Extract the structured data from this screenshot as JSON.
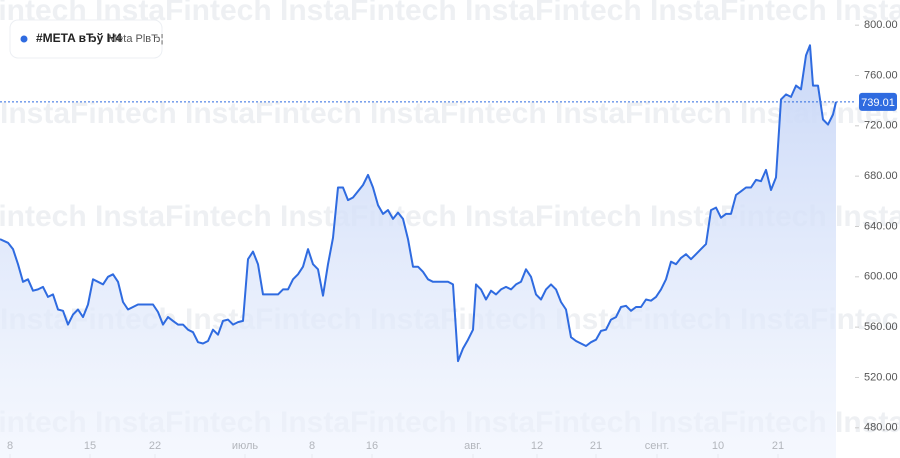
{
  "chart_data": {
    "type": "line",
    "title": "#META вЂў H4",
    "subtitle": "Meta PlвЂ¦",
    "watermark": "InstaFintech",
    "color": "#2f6be0",
    "fill": "#dfe7fb",
    "xlim": [
      0,
      855
    ],
    "ylim": [
      456,
      820
    ],
    "yticks": [
      {
        "value": 480,
        "label": "480.00"
      },
      {
        "value": 520,
        "label": "520.00"
      },
      {
        "value": 560,
        "label": "560.00"
      },
      {
        "value": 600,
        "label": "600.00"
      },
      {
        "value": 640,
        "label": "640.00"
      },
      {
        "value": 680,
        "label": "680.00"
      },
      {
        "value": 720,
        "label": "720.00"
      },
      {
        "value": 760,
        "label": "760.00"
      },
      {
        "value": 800,
        "label": "800.00"
      }
    ],
    "xticks": [
      {
        "value": 10,
        "label": "8"
      },
      {
        "value": 90,
        "label": "15"
      },
      {
        "value": 155,
        "label": "22"
      },
      {
        "value": 245,
        "label": "июль"
      },
      {
        "value": 312,
        "label": "8"
      },
      {
        "value": 372,
        "label": "16"
      },
      {
        "value": 473,
        "label": "авг."
      },
      {
        "value": 537,
        "label": "12"
      },
      {
        "value": 596,
        "label": "21"
      },
      {
        "value": 657,
        "label": "сент."
      },
      {
        "value": 718,
        "label": "10"
      },
      {
        "value": 778,
        "label": "21"
      }
    ],
    "x": [
      0,
      8,
      13,
      18,
      23,
      28,
      33,
      38,
      43,
      48,
      53,
      58,
      63,
      68,
      73,
      78,
      83,
      88,
      93,
      98,
      103,
      108,
      113,
      118,
      123,
      128,
      133,
      138,
      143,
      148,
      153,
      158,
      163,
      168,
      173,
      178,
      183,
      188,
      193,
      198,
      203,
      208,
      213,
      218,
      223,
      228,
      233,
      238,
      243,
      248,
      253,
      258,
      263,
      268,
      273,
      278,
      283,
      288,
      293,
      298,
      303,
      308,
      313,
      318,
      323,
      328,
      333,
      338,
      343,
      348,
      353,
      358,
      363,
      368,
      373,
      378,
      383,
      388,
      393,
      398,
      403,
      408,
      413,
      418,
      423,
      428,
      433,
      438,
      443,
      448,
      453,
      458,
      463,
      468,
      473,
      476,
      481,
      486,
      491,
      496,
      501,
      506,
      511,
      516,
      521,
      526,
      531,
      536,
      541,
      546,
      551,
      556,
      561,
      566,
      571,
      576,
      581,
      586,
      591,
      596,
      601,
      606,
      611,
      616,
      621,
      626,
      631,
      636,
      641,
      646,
      651,
      656,
      661,
      666,
      671,
      676,
      681,
      686,
      691,
      696,
      701,
      706,
      711,
      716,
      721,
      726,
      731,
      736,
      741,
      746,
      751,
      756,
      761,
      766,
      771,
      776,
      781,
      786,
      791,
      796,
      801,
      806,
      810,
      813,
      818,
      823,
      828,
      833,
      836
    ],
    "values": [
      630,
      627,
      622,
      610,
      596,
      598,
      589,
      590,
      592,
      584,
      586,
      574,
      573,
      562,
      570,
      574,
      568,
      578,
      598,
      596,
      594,
      600,
      602,
      596,
      580,
      574,
      576,
      578,
      578,
      578,
      578,
      572,
      562,
      568,
      565,
      562,
      562,
      558,
      556,
      548,
      547,
      549,
      558,
      554,
      565,
      566,
      562,
      564,
      565,
      614,
      620,
      610,
      586,
      586,
      586,
      586,
      590,
      590,
      598,
      602,
      608,
      622,
      610,
      606,
      585,
      610,
      631,
      671,
      671,
      661,
      663,
      668,
      673,
      681,
      671,
      657,
      650,
      653,
      646,
      651,
      646,
      630,
      608,
      608,
      604,
      598,
      596,
      596,
      596,
      596,
      594,
      533,
      543,
      550,
      558,
      594,
      590,
      582,
      589,
      586,
      590,
      592,
      590,
      594,
      596,
      606,
      600,
      586,
      582,
      590,
      594,
      590,
      580,
      574,
      552,
      549,
      547,
      545,
      548,
      550,
      557,
      558,
      566,
      568,
      576,
      577,
      573,
      576,
      576,
      582,
      581,
      584,
      590,
      598,
      612,
      610,
      615,
      618,
      614,
      618,
      622,
      626,
      653,
      655,
      647,
      650,
      650,
      665,
      668,
      671,
      671,
      677,
      676,
      685,
      669,
      679,
      741,
      745,
      743,
      752,
      749,
      776,
      784,
      752,
      752,
      725,
      721,
      729,
      739.01
    ]
  }
}
